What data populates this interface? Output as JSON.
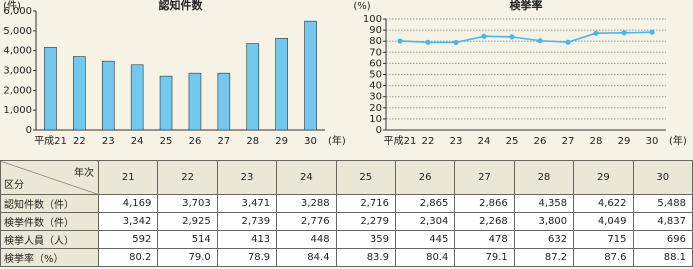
{
  "chart_data": [
    {
      "type": "bar",
      "title": "認知件数",
      "y_unit": "(件)",
      "x_unit": "(年)",
      "categories": [
        "平成21",
        "22",
        "23",
        "24",
        "25",
        "26",
        "27",
        "28",
        "29",
        "30"
      ],
      "values": [
        4169,
        3703,
        3471,
        3288,
        2716,
        2865,
        2866,
        4358,
        4622,
        5488
      ],
      "color": "#74c8ee",
      "ylim": [
        0,
        6000
      ],
      "yticks": [
        0,
        {
          "value": 1000,
          "label": "1,000"
        },
        {
          "value": 2000,
          "label": "2,000"
        },
        {
          "value": 3000,
          "label": "3,000"
        },
        {
          "value": 4000,
          "label": "4,000"
        },
        {
          "value": 5000,
          "label": "5,000"
        },
        {
          "value": 6000,
          "label": "6,000"
        }
      ],
      "grid": false
    },
    {
      "type": "line",
      "title": "検挙率",
      "y_unit": "(%)",
      "x_unit": "(年)",
      "categories": [
        "平成21",
        "22",
        "23",
        "24",
        "25",
        "26",
        "27",
        "28",
        "29",
        "30"
      ],
      "values": [
        80.2,
        79.0,
        78.9,
        84.4,
        83.9,
        80.4,
        79.1,
        87.2,
        87.6,
        88.1
      ],
      "color": "#4db6e6",
      "ylim": [
        0,
        100
      ],
      "yticks": [
        0,
        10,
        20,
        30,
        40,
        50,
        60,
        70,
        80,
        90,
        100
      ],
      "grid": true
    }
  ],
  "table": {
    "corner_top": "年次",
    "corner_bottom": "区分",
    "columns": [
      "21",
      "22",
      "23",
      "24",
      "25",
      "26",
      "27",
      "28",
      "29",
      "30"
    ],
    "rows": [
      {
        "label": "認知件数（件）",
        "cells": [
          "4,169",
          "3,703",
          "3,471",
          "3,288",
          "2,716",
          "2,865",
          "2,866",
          "4,358",
          "4,622",
          "5,488"
        ]
      },
      {
        "label": "検挙件数（件）",
        "cells": [
          "3,342",
          "2,925",
          "2,739",
          "2,776",
          "2,279",
          "2,304",
          "2,268",
          "3,800",
          "4,049",
          "4,837"
        ]
      },
      {
        "label": "検挙人員（人）",
        "cells": [
          "592",
          "514",
          "413",
          "448",
          "359",
          "445",
          "478",
          "632",
          "715",
          "696"
        ]
      },
      {
        "label": "検挙率（%）",
        "cells": [
          "80.2",
          "79.0",
          "78.9",
          "84.4",
          "83.9",
          "80.4",
          "79.1",
          "87.2",
          "87.6",
          "88.1"
        ]
      }
    ]
  }
}
